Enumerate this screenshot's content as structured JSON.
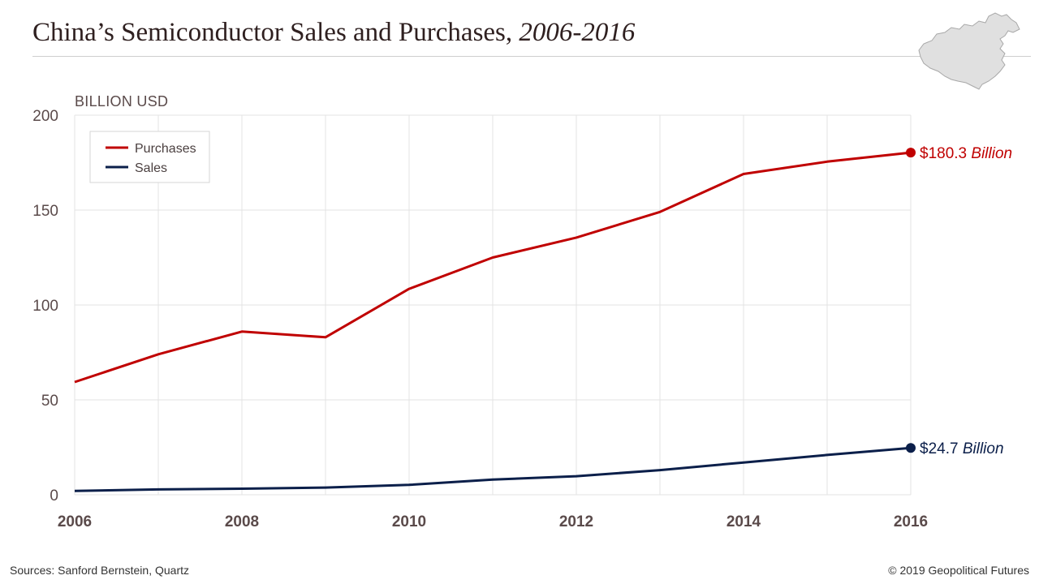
{
  "header": {
    "title_main": "China’s Semiconductor Sales and Purchases, ",
    "title_years": "2006-2016"
  },
  "map_icon": "china-map-icon",
  "footer": {
    "sources": "Sources: Sanford Bernstein, Quartz",
    "copyright": "© 2019 Geopolitical Futures"
  },
  "colors": {
    "purchases": "#c00000",
    "sales": "#0b1f4a",
    "grid": "#e3e3e3",
    "tick": "#5a4a4a"
  },
  "chart_data": {
    "type": "line",
    "title": "China’s Semiconductor Sales and Purchases, 2006-2016",
    "ylabel": "BILLION USD",
    "xlabel": "",
    "ylim": [
      0,
      200
    ],
    "xlim": [
      2006,
      2016
    ],
    "y_ticks": [
      0,
      50,
      100,
      150,
      200
    ],
    "x_ticks": [
      2006,
      2008,
      2010,
      2012,
      2014,
      2016
    ],
    "grid": true,
    "legend_position": "top-left",
    "x": [
      2006,
      2007,
      2008,
      2009,
      2010,
      2011,
      2012,
      2013,
      2014,
      2015,
      2016
    ],
    "series": [
      {
        "name": "Purchases",
        "values": [
          59.4,
          74,
          86,
          83,
          108.5,
          125,
          135.5,
          149,
          169,
          175.5,
          180.3
        ],
        "end_label_value": "$180.3",
        "end_label_unit": "Billion"
      },
      {
        "name": "Sales",
        "values": [
          2,
          2.8,
          3.2,
          3.8,
          5.2,
          8,
          9.8,
          13,
          17,
          21,
          24.7
        ],
        "end_label_value": "$24.7",
        "end_label_unit": "Billion"
      }
    ]
  }
}
